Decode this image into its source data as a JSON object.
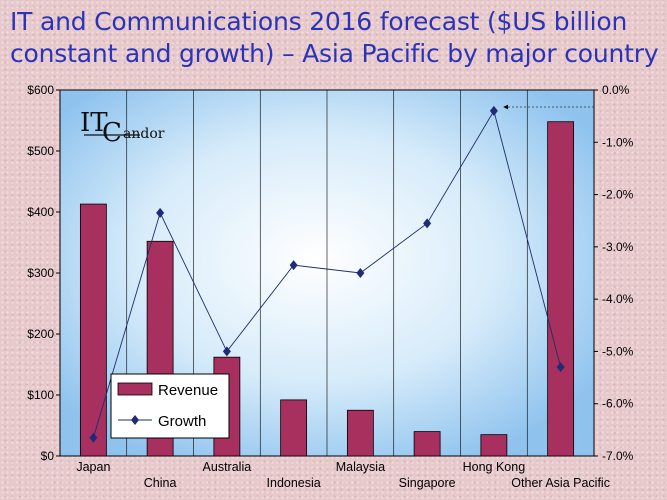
{
  "page": {
    "title": "IT and Communications 2016 forecast ($US billion constant and growth) – Asia Pacific by major country"
  },
  "logo": {
    "text_1": "IT",
    "text_2": "C",
    "text_3": "andor"
  },
  "chart_data": {
    "type": "bar+line",
    "categories": [
      "Japan",
      "China",
      "Australia",
      "Indonesia",
      "Malaysia",
      "Singapore",
      "Hong Kong",
      "Other Asia Pacific"
    ],
    "series": [
      {
        "name": "Revenue",
        "type": "bar",
        "axis": "left",
        "values": [
          413,
          352,
          162,
          92,
          75,
          40,
          35,
          548
        ]
      },
      {
        "name": "Growth",
        "type": "line",
        "axis": "right",
        "values": [
          -6.65,
          -2.35,
          -5.0,
          -3.35,
          -3.5,
          -2.55,
          -0.4,
          -5.3
        ]
      }
    ],
    "y_left": {
      "min": 0,
      "max": 600,
      "ticks": [
        "$0",
        "$100",
        "$200",
        "$300",
        "$400",
        "$500",
        "$600"
      ]
    },
    "y_right": {
      "min": -7.0,
      "max": 0.0,
      "ticks": [
        "0.0%",
        "-1.0%",
        "-2.0%",
        "-3.0%",
        "-4.0%",
        "-5.0%",
        "-6.0%",
        "-7.0%"
      ]
    },
    "legend_position": "bottom-left",
    "colors": {
      "bar": "#a8305f",
      "line": "#1c2d6b",
      "marker": "#1f2a78",
      "plot_edge": "#8fc3ee",
      "plot_center": "#ffffff"
    }
  }
}
